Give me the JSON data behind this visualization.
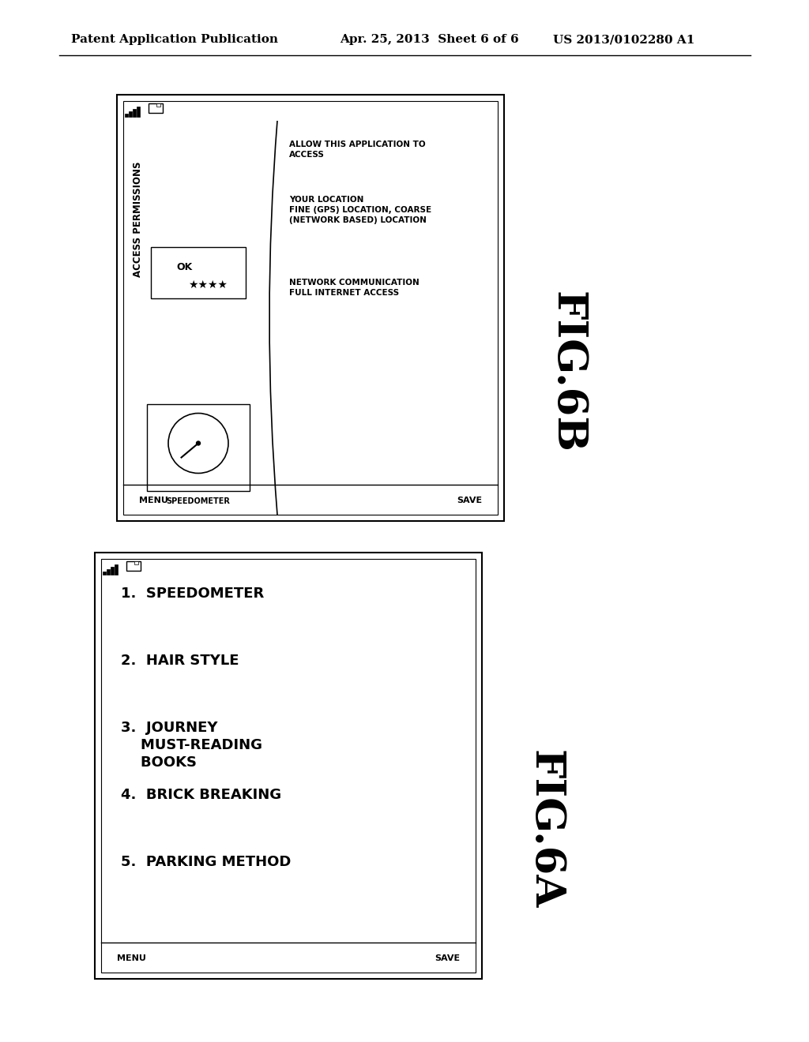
{
  "background_color": "#ffffff",
  "header_left": "Patent Application Publication",
  "header_center": "Apr. 25, 2013  Sheet 6 of 6",
  "header_right": "US 2013/0102280 A1",
  "fig6a_label": "FIG.6A",
  "fig6b_label": "FIG.6B",
  "fig6a_items": [
    "1.  SPEEDOMETER",
    "2.  HAIR STYLE",
    "3.  JOURNEY\n    MUST-READING\n    BOOKS",
    "4.  BRICK BREAKING",
    "5.  PARKING METHOD"
  ],
  "fig6a_menu": "MENU",
  "fig6a_save": "SAVE",
  "fig6b_title": "ACCESS PERMISSIONS",
  "fig6b_ok": "OK",
  "fig6b_stars": "★★★★",
  "fig6b_speedometer_label": "SPEEDOMETER",
  "fig6b_allow": "ALLOW THIS APPLICATION TO\nACCESS",
  "fig6b_location": "YOUR LOCATION\nFINE (GPS) LOCATION, COARSE\n(NETWORK BASED) LOCATION",
  "fig6b_network": "NETWORK COMMUNICATION\nFULL INTERNET ACCESS",
  "fig6b_menu": "MENU",
  "fig6b_save": "SAVE"
}
